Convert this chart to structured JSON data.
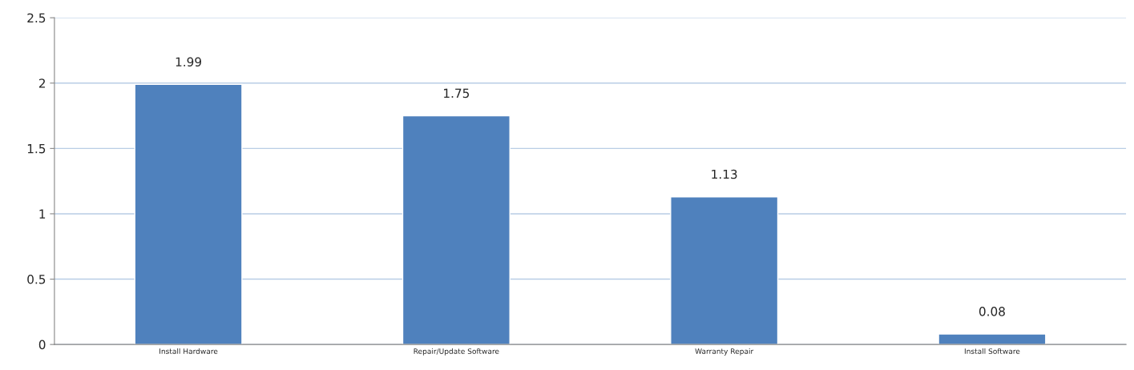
{
  "chart_data": {
    "type": "bar",
    "categories": [
      "Install Hardware",
      "Repair/Update Software",
      "Warranty Repair",
      "Install Software"
    ],
    "values": [
      1.99,
      1.75,
      1.13,
      0.08
    ],
    "color": "#4f81bd",
    "ylim": [
      0,
      2.5
    ],
    "yticks": [
      0,
      0.5,
      1,
      1.5,
      2,
      2.5
    ],
    "grid": "y",
    "data_labels": true,
    "legend": false
  }
}
